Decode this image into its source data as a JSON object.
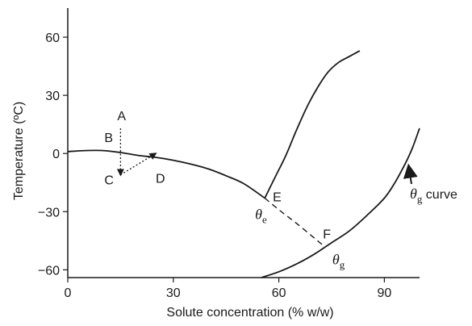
{
  "chart_data": {
    "type": "line",
    "xlabel": "Solute concentration (% w/w)",
    "ylabel": "Temperature (ºC)",
    "xlim": [
      0,
      100
    ],
    "ylim": [
      -64,
      75
    ],
    "x_ticks": [
      0,
      30,
      60,
      90
    ],
    "y_ticks": [
      60,
      30,
      0,
      -30,
      -60
    ],
    "grid": false,
    "series": [
      {
        "name": "",
        "style": "solid",
        "points": [
          [
            0,
            1
          ],
          [
            5,
            1.5
          ],
          [
            10,
            1.5
          ],
          [
            15,
            0.5
          ],
          [
            20,
            -1
          ],
          [
            25,
            -2
          ],
          [
            30,
            -3.5
          ],
          [
            35,
            -5.5
          ],
          [
            40,
            -8
          ],
          [
            45,
            -11.5
          ],
          [
            50,
            -15.5
          ],
          [
            56,
            -23
          ]
        ]
      },
      {
        "name": "",
        "style": "dashed",
        "points": [
          [
            56,
            -23
          ],
          [
            60,
            -29
          ],
          [
            65,
            -36
          ],
          [
            70,
            -43.5
          ],
          [
            73,
            -48
          ]
        ]
      },
      {
        "name": "",
        "style": "solid",
        "points": [
          [
            56,
            -23
          ],
          [
            59,
            -12
          ],
          [
            62,
            -1
          ],
          [
            65,
            12
          ],
          [
            68,
            24
          ],
          [
            71,
            34
          ],
          [
            74,
            42
          ],
          [
            77,
            47
          ],
          [
            80,
            50
          ],
          [
            83,
            53
          ]
        ]
      },
      {
        "name": "",
        "style": "solid",
        "points": [
          [
            55,
            -64
          ],
          [
            60,
            -61
          ],
          [
            65,
            -57
          ],
          [
            70,
            -52
          ],
          [
            75,
            -46
          ],
          [
            80,
            -40
          ],
          [
            85,
            -32
          ],
          [
            90,
            -23
          ],
          [
            93,
            -15
          ],
          [
            96,
            -5
          ],
          [
            98,
            3
          ],
          [
            100,
            13
          ]
        ]
      }
    ],
    "freezing_path": {
      "style": "dotted",
      "points": [
        [
          15,
          13
        ],
        [
          15,
          0
        ],
        [
          15,
          -11
        ],
        [
          20,
          -4
        ],
        [
          25,
          0
        ]
      ]
    },
    "point_labels": [
      {
        "text": "A",
        "x": 15,
        "y": 13
      },
      {
        "text": "B",
        "x": 15,
        "y": 0
      },
      {
        "text": "C",
        "x": 15,
        "y": -11
      },
      {
        "text": "D",
        "x": 25,
        "y": -1
      },
      {
        "text": "E",
        "x": 56,
        "y": -23
      },
      {
        "text": "F",
        "x": 73,
        "y": -48
      }
    ],
    "theta_e_label": {
      "symbol": "θ",
      "sub": "e",
      "x": 56,
      "y": -23
    },
    "theta_g_label": {
      "symbol": "θ",
      "sub": "g",
      "x": 72,
      "y": -48
    },
    "curve_label": {
      "symbol": "θ",
      "sub": "g",
      "text": " curve",
      "arrow_to": [
        96,
        -5
      ]
    }
  }
}
